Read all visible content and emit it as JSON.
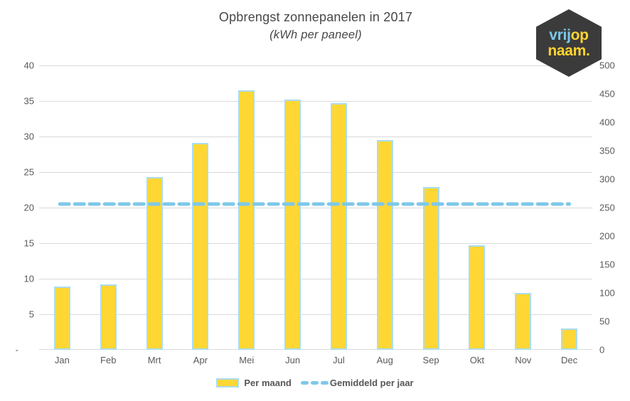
{
  "title": "Opbrengst zonnepanelen in 2017",
  "subtitle": "(kWh per paneel)",
  "logo": {
    "word1": "vrij",
    "word2": "op",
    "word3": "naam."
  },
  "legend": [
    {
      "label": "Per maand",
      "swatch": "bar"
    },
    {
      "label": "Gemiddeld per jaar",
      "swatch": "dash"
    }
  ],
  "chart_data": {
    "type": "bar",
    "title": "Opbrengst zonnepanelen in 2017",
    "subtitle": "(kWh per paneel)",
    "categories": [
      "Jan",
      "Feb",
      "Mrt",
      "Apr",
      "Mei",
      "Jun",
      "Jul",
      "Aug",
      "Sep",
      "Okt",
      "Nov",
      "Dec"
    ],
    "series": [
      {
        "name": "Per maand",
        "values": [
          8.9,
          9.2,
          24.3,
          29.1,
          36.5,
          35.2,
          34.7,
          29.5,
          22.9,
          14.7,
          8.0,
          3.0
        ]
      }
    ],
    "average_line": {
      "name": "Gemiddeld per jaar",
      "value": 20.5
    },
    "left_axis": {
      "min": 0,
      "max": 40,
      "step": 5,
      "labels": [
        "40",
        "35",
        "30",
        "25",
        "20",
        "15",
        "10",
        "5",
        "-"
      ]
    },
    "right_axis": {
      "min": 0,
      "max": 500,
      "step": 50,
      "labels": [
        "500",
        "450",
        "400",
        "350",
        "300",
        "250",
        "200",
        "150",
        "100",
        "50",
        "0"
      ]
    },
    "grid": true,
    "legend_position": "bottom"
  },
  "colors": {
    "background": "#FFFFFF",
    "bar_fill": "#FFD735",
    "bar_border": "#ABDCF0",
    "dash": "#7EC8EA",
    "grid": "#D9D9D9",
    "axis_text": "#595959",
    "title_text": "#474747",
    "logo_bg": "#3B3B3B",
    "logo_blue": "#7AC8EA",
    "logo_yellow": "#FFD42E"
  }
}
